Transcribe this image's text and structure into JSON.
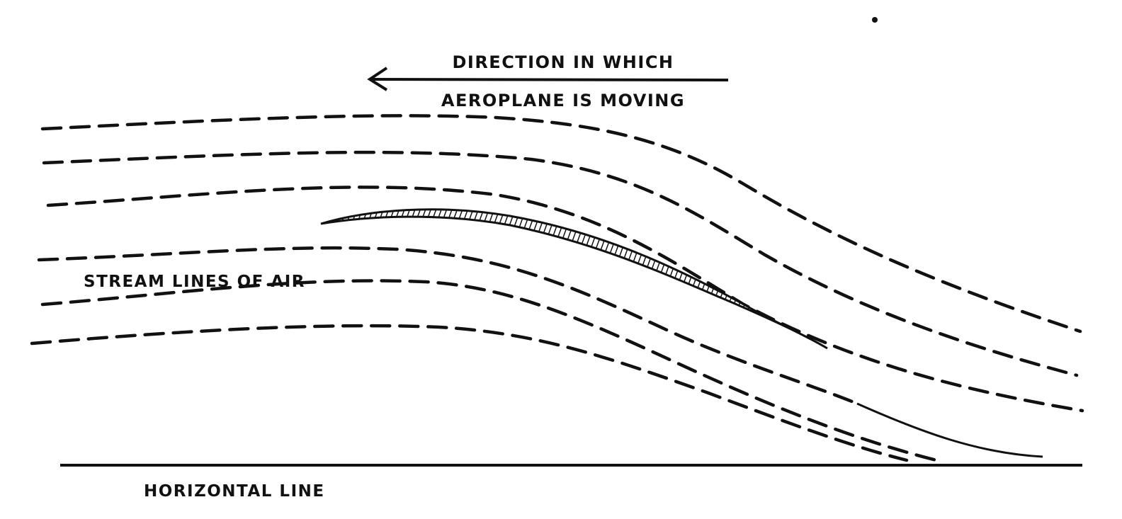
{
  "diagram": {
    "direction_label_line1": "DIRECTION IN WHICH",
    "direction_label_line2": "AEROPLANE IS MOVING",
    "streamlines_label": "STREAM LINES OF AIR",
    "horizontal_label": "HORIZONTAL LINE",
    "ink_color": "#111111",
    "background_color": "#ffffff"
  }
}
